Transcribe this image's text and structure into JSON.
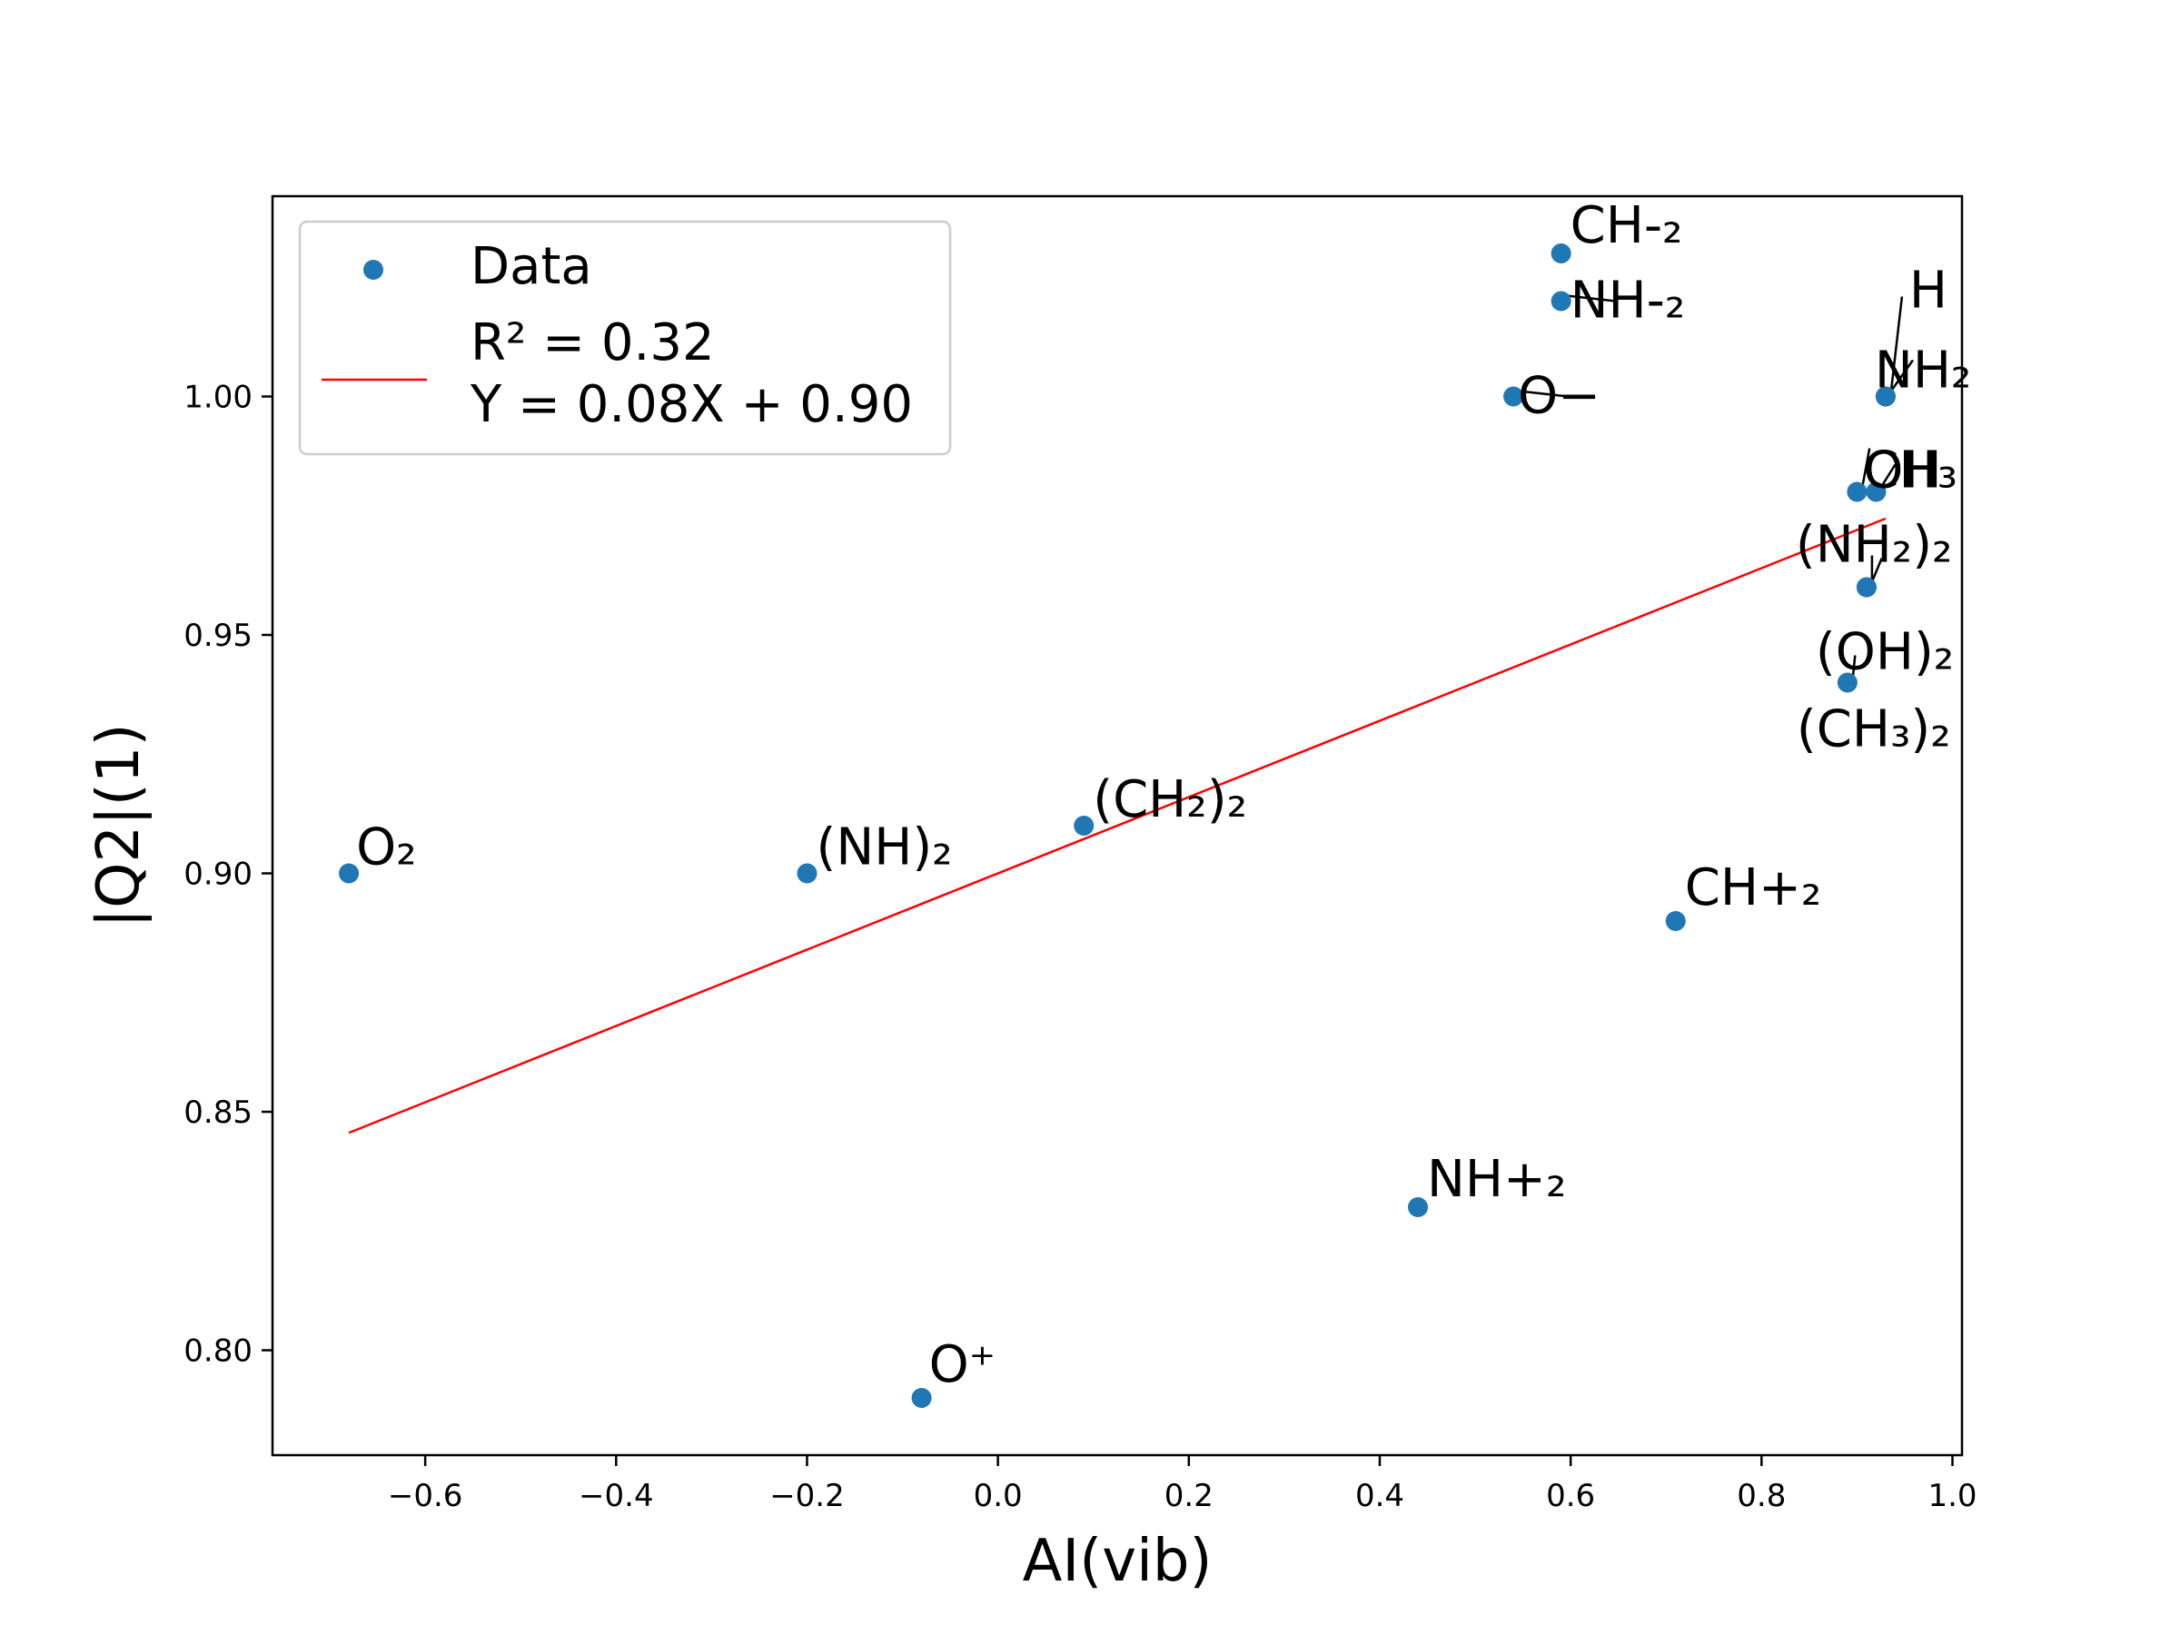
{
  "chart_data": {
    "type": "scatter",
    "xlabel": "AI(vib)",
    "ylabel": "|Q2|(1)",
    "xlim": [
      -0.76,
      1.01
    ],
    "ylim": [
      0.778,
      1.042
    ],
    "xticks": [
      -0.6,
      -0.4,
      -0.2,
      0.0,
      0.2,
      0.4,
      0.6,
      0.8,
      1.0
    ],
    "xtick_labels": [
      "−0.6",
      "−0.4",
      "−0.2",
      "0.0",
      "0.2",
      "0.4",
      "0.6",
      "0.8",
      "1.0"
    ],
    "yticks": [
      0.8,
      0.85,
      0.9,
      0.95,
      1.0
    ],
    "ytick_labels": [
      "0.80",
      "0.85",
      "0.90",
      "0.95",
      "1.00"
    ],
    "grid": false,
    "legend_position": "top-left",
    "colors": {
      "points": "#1f77b4",
      "fit": "#ff0000"
    },
    "series": [
      {
        "name": "Data",
        "kind": "scatter",
        "points": [
          {
            "label": "O₂",
            "x": -0.68,
            "y": 0.9
          },
          {
            "label": "(NH)₂",
            "x": -0.2,
            "y": 0.9
          },
          {
            "label": "O⁺",
            "x": -0.08,
            "y": 0.79
          },
          {
            "label": "(CH₂)₂",
            "x": 0.09,
            "y": 0.91
          },
          {
            "label": "NH+₂",
            "x": 0.44,
            "y": 0.83
          },
          {
            "label": "O−",
            "x": 0.54,
            "y": 1.0
          },
          {
            "label": "CH-₂",
            "x": 0.59,
            "y": 1.03
          },
          {
            "label": "NH-₂",
            "x": 0.59,
            "y": 1.02
          },
          {
            "label": "CH+₂",
            "x": 0.71,
            "y": 0.89
          },
          {
            "label": "(CH₃)₂",
            "x": 0.89,
            "y": 0.94
          },
          {
            "label": "CH₃",
            "x": 0.9,
            "y": 0.98
          },
          {
            "label": "(NH₂)₂",
            "x": 0.91,
            "y": 0.96
          },
          {
            "label": "OH",
            "x": 0.92,
            "y": 0.98
          },
          {
            "label": "NH₂",
            "x": 0.93,
            "y": 1.0
          },
          {
            "label": "H",
            "x": 0.93,
            "y": 1.0
          },
          {
            "label": "(OH)₂",
            "x": 0.91,
            "y": 0.96
          }
        ]
      },
      {
        "name": "R² = 0.32\nY = 0.08X + 0.90",
        "kind": "line",
        "slope": 0.08,
        "intercept": 0.9,
        "x_range": [
          -0.68,
          0.93
        ]
      }
    ],
    "legend": {
      "entries": [
        "Data",
        "R² = 0.32",
        "Y = 0.08X + 0.90"
      ]
    }
  }
}
